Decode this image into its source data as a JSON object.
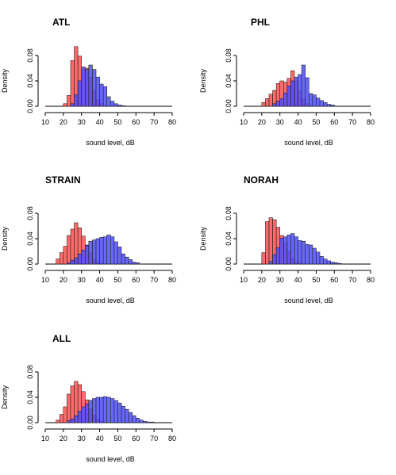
{
  "chart_data": [
    {
      "type": "histogram",
      "title": "ATL",
      "xlabel": "sound level, dB",
      "ylabel": "Density",
      "xlim": [
        10,
        80
      ],
      "ylim": [
        0,
        0.09
      ],
      "xticks": [
        "10",
        "20",
        "30",
        "40",
        "50",
        "60",
        "70",
        "80"
      ],
      "yticks": [
        "0.00",
        "0.04",
        "0.08"
      ],
      "bin_start": 20,
      "bin_width": 2,
      "series": [
        {
          "color": "#ff5050",
          "values": [
            0.004,
            0.017,
            0.072,
            0.094,
            0.079,
            0.058,
            0.06,
            0.046,
            0.025,
            0.01,
            0.004,
            0.001,
            0,
            0,
            0,
            0,
            0,
            0,
            0,
            0
          ]
        },
        {
          "color": "#4d4dff",
          "values": [
            0,
            0,
            0.004,
            0.018,
            0.04,
            0.062,
            0.058,
            0.065,
            0.058,
            0.046,
            0.035,
            0.031,
            0.015,
            0.008,
            0.004,
            0.002,
            0.001,
            0,
            0,
            0
          ]
        }
      ]
    },
    {
      "type": "histogram",
      "title": "PHL",
      "xlabel": "sound level, dB",
      "ylabel": "Density",
      "xlim": [
        10,
        80
      ],
      "ylim": [
        0,
        0.09
      ],
      "xticks": [
        "10",
        "20",
        "30",
        "40",
        "50",
        "60",
        "70",
        "80"
      ],
      "yticks": [
        "0.00",
        "0.04",
        "0.08"
      ],
      "bin_start": 20,
      "bin_width": 2,
      "series": [
        {
          "color": "#ff5050",
          "values": [
            0.006,
            0.012,
            0.019,
            0.025,
            0.036,
            0.04,
            0.038,
            0.044,
            0.056,
            0.04,
            0.024,
            0.011,
            0.004,
            0.001,
            0,
            0,
            0,
            0,
            0,
            0
          ]
        },
        {
          "color": "#4d4dff",
          "values": [
            0,
            0,
            0,
            0.004,
            0.008,
            0.012,
            0.021,
            0.032,
            0.04,
            0.046,
            0.05,
            0.065,
            0.045,
            0.02,
            0.018,
            0.013,
            0.009,
            0.006,
            0.003,
            0.002
          ]
        }
      ]
    },
    {
      "type": "histogram",
      "title": "STRAIN",
      "xlabel": "sound level, dB",
      "ylabel": "Density",
      "xlim": [
        10,
        80
      ],
      "ylim": [
        0,
        0.09
      ],
      "xticks": [
        "10",
        "20",
        "30",
        "40",
        "50",
        "60",
        "70",
        "80"
      ],
      "yticks": [
        "0.00",
        "0.04",
        "0.08"
      ],
      "bin_start": 16,
      "bin_width": 2,
      "series": [
        {
          "color": "#ff5050",
          "values": [
            0.008,
            0.018,
            0.028,
            0.045,
            0.055,
            0.065,
            0.057,
            0.044,
            0.03,
            0.017,
            0.007,
            0.003,
            0.001,
            0,
            0,
            0,
            0,
            0,
            0,
            0,
            0,
            0,
            0
          ]
        },
        {
          "color": "#4d4dff",
          "values": [
            0,
            0,
            0,
            0.002,
            0.006,
            0.01,
            0.016,
            0.022,
            0.029,
            0.036,
            0.038,
            0.04,
            0.042,
            0.043,
            0.046,
            0.043,
            0.035,
            0.027,
            0.016,
            0.011,
            0.007,
            0.003,
            0.002
          ]
        }
      ]
    },
    {
      "type": "histogram",
      "title": "NORAH",
      "xlabel": "sound level, dB",
      "ylabel": "Density",
      "xlim": [
        10,
        80
      ],
      "ylim": [
        0,
        0.09
      ],
      "xticks": [
        "10",
        "20",
        "30",
        "40",
        "50",
        "60",
        "70",
        "80"
      ],
      "yticks": [
        "0.00",
        "0.04",
        "0.08"
      ],
      "bin_start": 20,
      "bin_width": 2,
      "series": [
        {
          "color": "#ff5050",
          "values": [
            0.018,
            0.067,
            0.073,
            0.07,
            0.058,
            0.045,
            0.034,
            0.02,
            0.009,
            0.004,
            0.002,
            0,
            0,
            0,
            0,
            0,
            0,
            0,
            0,
            0,
            0,
            0,
            0,
            0
          ]
        },
        {
          "color": "#4d4dff",
          "values": [
            0,
            0,
            0.004,
            0.015,
            0.026,
            0.041,
            0.043,
            0.046,
            0.048,
            0.043,
            0.037,
            0.036,
            0.031,
            0.03,
            0.025,
            0.019,
            0.012,
            0.008,
            0.005,
            0.003,
            0.002,
            0.001,
            0,
            0
          ]
        }
      ]
    },
    {
      "type": "histogram",
      "title": "ALL",
      "xlabel": "sound level, dB",
      "ylabel": "Density",
      "xlim": [
        10,
        80
      ],
      "ylim": [
        0,
        0.09
      ],
      "xticks": [
        "10",
        "20",
        "30",
        "40",
        "50",
        "60",
        "70",
        "80"
      ],
      "yticks": [
        "0.00",
        "0.04",
        "0.08"
      ],
      "bin_start": 16,
      "bin_width": 2,
      "series": [
        {
          "color": "#ff5050",
          "values": [
            0.004,
            0.013,
            0.025,
            0.045,
            0.058,
            0.065,
            0.06,
            0.049,
            0.036,
            0.022,
            0.012,
            0.005,
            0.002,
            0.001,
            0,
            0,
            0,
            0,
            0,
            0,
            0,
            0,
            0,
            0,
            0,
            0,
            0,
            0
          ]
        },
        {
          "color": "#4d4dff",
          "values": [
            0,
            0,
            0,
            0.003,
            0.006,
            0.011,
            0.018,
            0.025,
            0.03,
            0.035,
            0.038,
            0.04,
            0.04,
            0.041,
            0.04,
            0.038,
            0.035,
            0.031,
            0.026,
            0.021,
            0.016,
            0.011,
            0.007,
            0.004,
            0.002,
            0.001,
            0.001,
            0
          ]
        }
      ]
    }
  ]
}
